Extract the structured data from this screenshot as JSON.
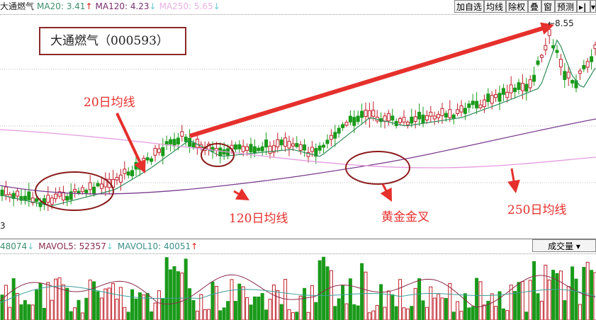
{
  "header": {
    "stock_name": "大通燃气",
    "ma20": "MA20: 3.41",
    "ma20_trend": "↑",
    "ma120": "MA120: 4.23",
    "ma120_trend": "↓",
    "ma250": "MA250: 5.65",
    "ma250_trend": "↓"
  },
  "toolbar": {
    "add_watch": "加自选",
    "ma": "均线",
    "exright": "除权",
    "overlay": "叠",
    "window": "窗",
    "forecast": "预测",
    "more": "▸|",
    "dropdown": "▾"
  },
  "chart": {
    "high_label": "←8.55",
    "left_edge_label": "3"
  },
  "annotations": {
    "title": "大通燃气（000593）",
    "ma20_label": "20日均线",
    "ma120_label": "120日均线",
    "golden_cross_label": "黄金金叉",
    "ma250_label": "250日均线"
  },
  "volume": {
    "vol": "48074",
    "vol_trend": "↓",
    "mavol5": "MAVOL5: 52357",
    "mavol5_trend": "↓",
    "mavol10": "MAVOL10: 40051",
    "mavol10_trend": "↑",
    "selector": "成交量",
    "selector_arrow": "▾"
  },
  "colors": {
    "up": "#c0202a",
    "down": "#1a9a1a",
    "ma20": "#2e8b57",
    "ma120": "#7a3b8f",
    "ma250": "#e39be0",
    "annotation": "#e5302c"
  }
}
